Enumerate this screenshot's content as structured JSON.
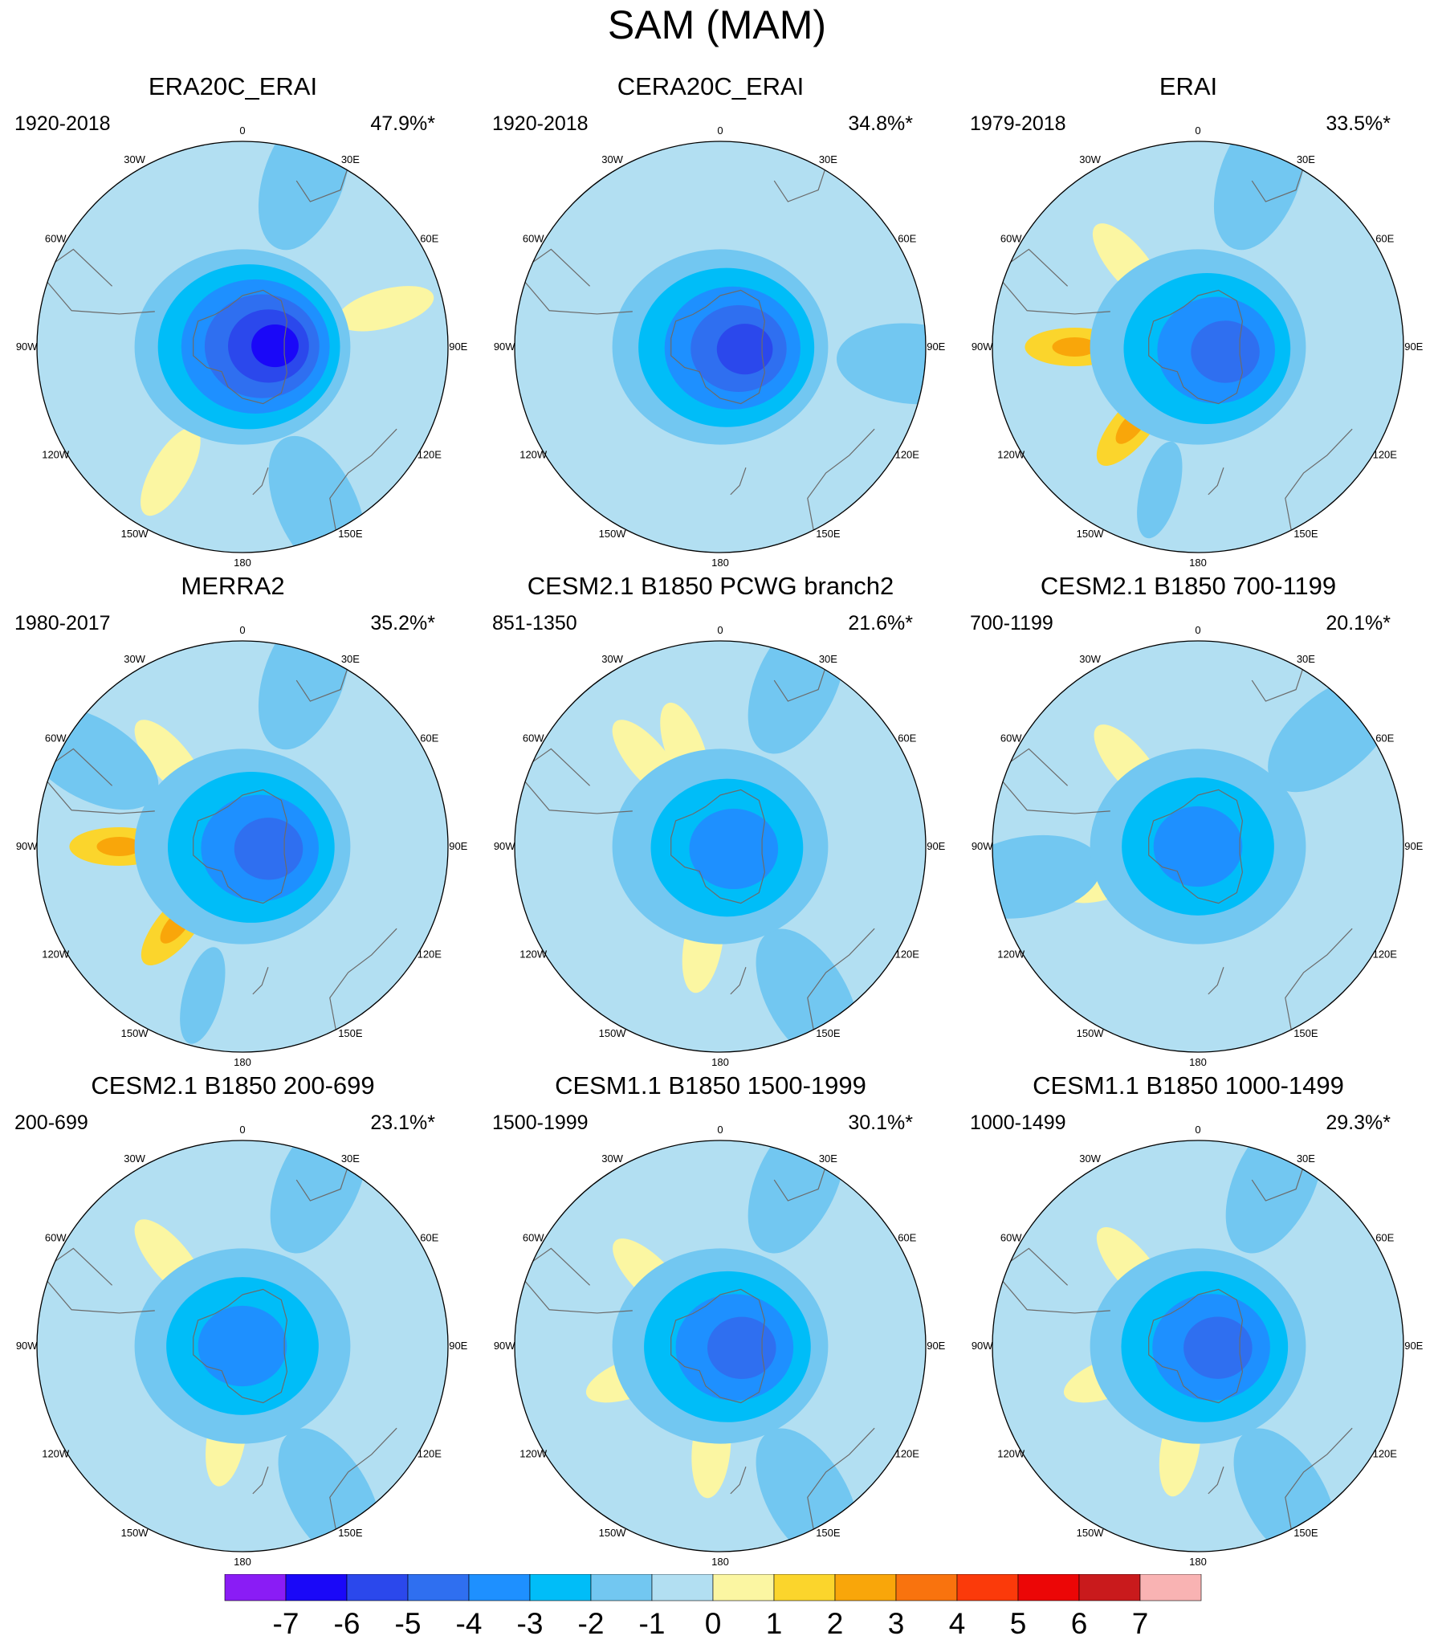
{
  "figure": {
    "title": "SAM (MAM)"
  },
  "colors": {
    "scale": [
      "#8a1cf5",
      "#1a08f8",
      "#2b48ec",
      "#2f6ff0",
      "#1e90ff",
      "#00bdf8",
      "#72c7f1",
      "#b2dff2",
      "#fbf6a2",
      "#fbd52c",
      "#f9a60a",
      "#f9730e",
      "#fb3a0a",
      "#ec0606",
      "#c91a1c",
      "#f9b3b3"
    ]
  },
  "chart_data": [
    {
      "type": "heatmap",
      "projection": "south-polar-stereographic",
      "title": "ERA20C_ERAI",
      "period": "1920-2018",
      "variance_explained": "47.9%*",
      "min_value": -6,
      "core_lon": 88,
      "core_radius": 0.19,
      "lobes": [
        {
          "lon": 75,
          "r": 0.72,
          "value": 1
        },
        {
          "lon": 20,
          "r": 0.88,
          "value": -1
        },
        {
          "lon": 155,
          "r": 0.86,
          "value": -1
        },
        {
          "lon": -150,
          "r": 0.7,
          "value": 1
        }
      ]
    },
    {
      "type": "heatmap",
      "projection": "south-polar-stereographic",
      "title": "CERA20C_ERAI",
      "period": "1920-2018",
      "variance_explained": "34.8%*",
      "min_value": -5,
      "core_lon": 95,
      "core_radius": 0.15,
      "lobes": [
        {
          "lon": 95,
          "r": 0.94,
          "value": -1
        }
      ]
    },
    {
      "type": "heatmap",
      "projection": "south-polar-stereographic",
      "title": "ERAI",
      "period": "1979-2018",
      "variance_explained": "33.5%*",
      "min_value": -4,
      "core_lon": 100,
      "core_radius": 0.18,
      "lobes": [
        {
          "lon": -90,
          "r": 0.6,
          "value": 2
        },
        {
          "lon": -40,
          "r": 0.53,
          "value": 1
        },
        {
          "lon": -140,
          "r": 0.5,
          "value": 2
        },
        {
          "lon": -165,
          "r": 0.72,
          "value": -1
        },
        {
          "lon": 20,
          "r": 0.88,
          "value": -1
        }
      ]
    },
    {
      "type": "heatmap",
      "projection": "south-polar-stereographic",
      "title": "MERRA2",
      "period": "1980-2017",
      "variance_explained": "35.2%*",
      "min_value": -4,
      "core_lon": 95,
      "core_radius": 0.17,
      "lobes": [
        {
          "lon": -90,
          "r": 0.6,
          "value": 2
        },
        {
          "lon": -40,
          "r": 0.55,
          "value": 1
        },
        {
          "lon": -140,
          "r": 0.5,
          "value": 2
        },
        {
          "lon": -165,
          "r": 0.75,
          "value": -1
        },
        {
          "lon": 20,
          "r": 0.88,
          "value": -1
        },
        {
          "lon": -60,
          "r": 0.86,
          "value": -1
        }
      ]
    },
    {
      "type": "heatmap",
      "projection": "south-polar-stereographic",
      "title": "CESM2.1 B1850 PCWG branch2",
      "period": "851-1350",
      "variance_explained": "21.6%*",
      "min_value": -3,
      "core_lon": 100,
      "core_radius": 0.1,
      "lobes": [
        {
          "lon": -170,
          "r": 0.48,
          "value": 1
        },
        {
          "lon": -40,
          "r": 0.55,
          "value": 1
        },
        {
          "lon": -20,
          "r": 0.5,
          "value": 1
        },
        {
          "lon": 150,
          "r": 0.85,
          "value": -1
        },
        {
          "lon": 25,
          "r": 0.88,
          "value": -1
        }
      ]
    },
    {
      "type": "heatmap",
      "projection": "south-polar-stereographic",
      "title": "CESM2.1 B1850 700-1199",
      "period": "700-1199",
      "variance_explained": "20.1%*",
      "min_value": -3,
      "core_lon": 0,
      "core_radius": 0.0,
      "lobes": [
        {
          "lon": -40,
          "r": 0.52,
          "value": 1
        },
        {
          "lon": -110,
          "r": 0.45,
          "value": 1
        },
        {
          "lon": -100,
          "r": 0.85,
          "value": -1
        },
        {
          "lon": 50,
          "r": 0.85,
          "value": -1
        }
      ]
    },
    {
      "type": "heatmap",
      "projection": "south-polar-stereographic",
      "title": "CESM2.1 B1850 200-699",
      "period": "200-699",
      "variance_explained": "23.1%*",
      "min_value": -3,
      "core_lon": 0,
      "core_radius": 0.0,
      "lobes": [
        {
          "lon": -40,
          "r": 0.55,
          "value": 1
        },
        {
          "lon": -170,
          "r": 0.45,
          "value": 1
        },
        {
          "lon": 150,
          "r": 0.85,
          "value": -1
        },
        {
          "lon": 25,
          "r": 0.88,
          "value": -1
        }
      ]
    },
    {
      "type": "heatmap",
      "projection": "south-polar-stereographic",
      "title": "CESM1.1 B1850 1500-1999",
      "period": "1500-1999",
      "variance_explained": "30.1%*",
      "min_value": -4,
      "core_lon": 95,
      "core_radius": 0.14,
      "lobes": [
        {
          "lon": -175,
          "r": 0.5,
          "value": 1
        },
        {
          "lon": -45,
          "r": 0.48,
          "value": 1
        },
        {
          "lon": -110,
          "r": 0.45,
          "value": 1
        },
        {
          "lon": 150,
          "r": 0.85,
          "value": -1
        },
        {
          "lon": 25,
          "r": 0.88,
          "value": -1
        }
      ]
    },
    {
      "type": "heatmap",
      "projection": "south-polar-stereographic",
      "title": "CESM1.1 B1850 1000-1499",
      "period": "1000-1499",
      "variance_explained": "29.3%*",
      "min_value": -4,
      "core_lon": 95,
      "core_radius": 0.13,
      "lobes": [
        {
          "lon": -170,
          "r": 0.5,
          "value": 1
        },
        {
          "lon": -40,
          "r": 0.5,
          "value": 1
        },
        {
          "lon": -110,
          "r": 0.45,
          "value": 1
        },
        {
          "lon": 150,
          "r": 0.85,
          "value": -1
        },
        {
          "lon": 25,
          "r": 0.88,
          "value": -1
        }
      ]
    }
  ],
  "longitude_labels": [
    "0",
    "30E",
    "60E",
    "90E",
    "120E",
    "150E",
    "180",
    "150W",
    "120W",
    "90W",
    "60W",
    "30W"
  ],
  "longitude_values": [
    0,
    30,
    60,
    90,
    120,
    150,
    180,
    -150,
    -120,
    -90,
    -60,
    -30
  ],
  "colorbar": {
    "labels": [
      "-7",
      "-6",
      "-5",
      "-4",
      "-3",
      "-2",
      "-1",
      "0",
      "1",
      "2",
      "3",
      "4",
      "5",
      "6",
      "7"
    ]
  }
}
